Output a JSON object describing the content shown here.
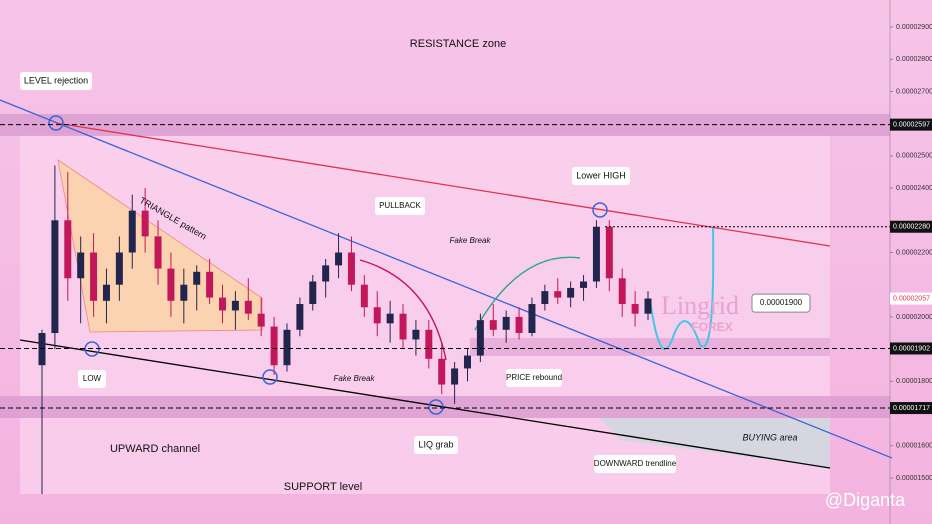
{
  "chart_data": {
    "type": "candlestick",
    "categories": [
      null,
      null,
      null,
      null,
      null,
      null,
      null,
      null,
      null,
      null,
      null,
      null,
      null,
      null,
      null,
      null,
      null,
      null,
      null,
      null,
      null,
      null,
      null,
      null,
      null,
      null,
      null,
      null,
      null,
      null,
      null,
      null,
      null,
      null,
      null,
      null,
      null,
      null,
      null,
      null,
      null,
      null,
      null,
      null,
      null,
      null,
      null,
      null
    ],
    "open": [
      1.85e-05,
      1.95e-05,
      2.3e-05,
      2.12e-05,
      2.2e-05,
      2.05e-05,
      2.1e-05,
      2.2e-05,
      2.33e-05,
      2.25e-05,
      2.15e-05,
      2.05e-05,
      2.1e-05,
      2.14e-05,
      2.06e-05,
      2.02e-05,
      2.05e-05,
      2.01e-05,
      1.97e-05,
      1.85e-05,
      1.96e-05,
      2.04e-05,
      2.11e-05,
      2.16e-05,
      2.2e-05,
      2.1e-05,
      2.03e-05,
      1.98e-05,
      2.01e-05,
      1.93e-05,
      1.96e-05,
      1.87e-05,
      1.79e-05,
      1.84e-05,
      1.88e-05,
      1.99e-05,
      1.96e-05,
      2e-05,
      1.95e-05,
      2.04e-05,
      2.08e-05,
      2.06e-05,
      2.09e-05,
      2.11e-05,
      2.28e-05,
      2.12e-05,
      2.04e-05,
      2.01e-05
    ],
    "high": [
      1.96e-05,
      2.47e-05,
      2.45e-05,
      2.25e-05,
      2.26e-05,
      2.15e-05,
      2.25e-05,
      2.38e-05,
      2.4e-05,
      2.3e-05,
      2.2e-05,
      2.15e-05,
      2.16e-05,
      2.18e-05,
      2.1e-05,
      2.08e-05,
      2.12e-05,
      2.06e-05,
      2e-05,
      1.98e-05,
      2.06e-05,
      2.13e-05,
      2.18e-05,
      2.26e-05,
      2.25e-05,
      2.13e-05,
      2.08e-05,
      2.05e-05,
      2.04e-05,
      1.99e-05,
      1.99e-05,
      1.92e-05,
      1.86e-05,
      1.9e-05,
      2.01e-05,
      2.04e-05,
      2.02e-05,
      2.03e-05,
      2.06e-05,
      2.1e-05,
      2.12e-05,
      2.11e-05,
      2.13e-05,
      2.3e-05,
      2.3e-05,
      2.15e-05,
      2.08e-05,
      2.08e-05
    ],
    "low": [
      1.45e-05,
      1.9e-05,
      2.05e-05,
      1.98e-05,
      2e-05,
      1.98e-05,
      2.05e-05,
      2.15e-05,
      2.2e-05,
      2.1e-05,
      2e-05,
      1.98e-05,
      2.02e-05,
      2.04e-05,
      1.98e-05,
      1.96e-05,
      1.99e-05,
      1.94e-05,
      1.82e-05,
      1.83e-05,
      1.94e-05,
      2.02e-05,
      2.06e-05,
      2.12e-05,
      2.08e-05,
      2e-05,
      1.94e-05,
      1.92e-05,
      1.9e-05,
      1.88e-05,
      1.84e-05,
      1.76e-05,
      1.73e-05,
      1.8e-05,
      1.86e-05,
      1.94e-05,
      1.92e-05,
      1.93e-05,
      1.94e-05,
      2.02e-05,
      2.04e-05,
      2.03e-05,
      2.05e-05,
      2.09e-05,
      2.08e-05,
      2e-05,
      1.97e-05,
      1.99e-05
    ],
    "close": [
      1.95e-05,
      2.3e-05,
      2.12e-05,
      2.2e-05,
      2.05e-05,
      2.1e-05,
      2.2e-05,
      2.33e-05,
      2.25e-05,
      2.15e-05,
      2.05e-05,
      2.1e-05,
      2.14e-05,
      2.06e-05,
      2.02e-05,
      2.05e-05,
      2.01e-05,
      1.97e-05,
      1.85e-05,
      1.96e-05,
      2.04e-05,
      2.11e-05,
      2.16e-05,
      2.2e-05,
      2.1e-05,
      2.03e-05,
      1.98e-05,
      2.01e-05,
      1.93e-05,
      1.96e-05,
      1.87e-05,
      1.79e-05,
      1.84e-05,
      1.88e-05,
      1.99e-05,
      1.96e-05,
      2e-05,
      1.95e-05,
      2.04e-05,
      2.08e-05,
      2.06e-05,
      2.09e-05,
      2.11e-05,
      2.28e-05,
      2.12e-05,
      2.04e-05,
      2.01e-05,
      2.057e-05
    ],
    "up_color": "#22264f",
    "down_color": "#c2185b",
    "ylim": [
      1.357e-05,
      2.984e-05
    ],
    "yticks": [
      {
        "value": 2.9e-05,
        "label": "0.00002900"
      },
      {
        "value": 2.8e-05,
        "label": "0.00002800"
      },
      {
        "value": 2.7e-05,
        "label": "0.00002700"
      },
      {
        "value": 2.5e-05,
        "label": "0.00002500"
      },
      {
        "value": 2.4e-05,
        "label": "0.00002400"
      },
      {
        "value": 2.2e-05,
        "label": "0.00002200"
      },
      {
        "value": 2e-05,
        "label": "0.00002000"
      },
      {
        "value": 1.8e-05,
        "label": "0.00001800"
      },
      {
        "value": 1.6e-05,
        "label": "0.00001600"
      },
      {
        "value": 1.5e-05,
        "label": "0.00001500"
      }
    ],
    "levels": [
      {
        "value": 2.597e-05,
        "label": "0.00002597"
      },
      {
        "value": 2.28e-05,
        "label": "0.00002280"
      },
      {
        "value": 1.902e-05,
        "label": "0.00001902"
      },
      {
        "value": 1.717e-05,
        "label": "0.00001717"
      }
    ],
    "current_price": {
      "value": 2.057e-05,
      "label": "0.00002057"
    },
    "target": {
      "value": 1.9e-05,
      "label": "0.00001900"
    },
    "annotations": {
      "resistance": "RESISTANCE zone",
      "rejection": "LEVEL rejection",
      "triangle": "TRIANGLE pattern",
      "pullback": "PULLBACK",
      "fake1": "Fake Break",
      "fake2": "Fake Break",
      "lower_high": "Lower HIGH",
      "low": "LOW",
      "upward": "UPWARD channel",
      "support": "SUPPORT level",
      "liq": "LIQ grab",
      "rebound": "PRICE rebound",
      "downward": "DOWNWARD trendline",
      "buying": "BUYING area",
      "brand": "Lingrid",
      "brand_sub": "FOREX",
      "watermark": "@Diganta"
    }
  }
}
